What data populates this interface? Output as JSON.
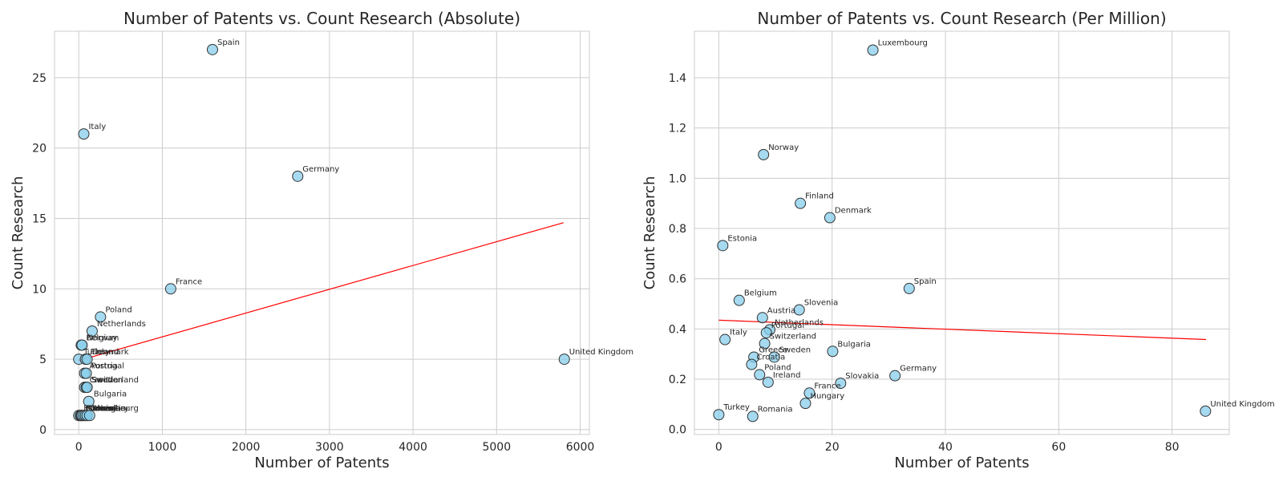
{
  "chart_data": [
    {
      "type": "scatter",
      "title": "Number of Patents vs. Count Research (Absolute)",
      "xlabel": "Number of Patents",
      "ylabel": "Count Research",
      "xlim": [
        -290,
        6110
      ],
      "ylim": [
        -0.35,
        28.3
      ],
      "xticks": [
        0,
        1000,
        2000,
        3000,
        4000,
        5000,
        6000
      ],
      "yticks": [
        0,
        5,
        10,
        15,
        20,
        25
      ],
      "grid": true,
      "marker_color": "#87ceeb",
      "trend_color": "#ff0000",
      "trendline": {
        "x": [
          0,
          5800
        ],
        "y": [
          4.9,
          14.7
        ]
      },
      "points": [
        {
          "label": "Spain",
          "x": 1600,
          "y": 27
        },
        {
          "label": "Italy",
          "x": 60,
          "y": 21
        },
        {
          "label": "Germany",
          "x": 2620,
          "y": 18
        },
        {
          "label": "France",
          "x": 1100,
          "y": 10
        },
        {
          "label": "Poland",
          "x": 260,
          "y": 8
        },
        {
          "label": "Netherlands",
          "x": 160,
          "y": 7
        },
        {
          "label": "Belgium",
          "x": 30,
          "y": 6
        },
        {
          "label": "Norway",
          "x": 40,
          "y": 6
        },
        {
          "label": "Turkey",
          "x": 0,
          "y": 5
        },
        {
          "label": "Finland",
          "x": 80,
          "y": 5
        },
        {
          "label": "Denmark",
          "x": 100,
          "y": 5
        },
        {
          "label": "United Kingdom",
          "x": 5810,
          "y": 5
        },
        {
          "label": "Austria",
          "x": 70,
          "y": 4
        },
        {
          "label": "Portugal",
          "x": 90,
          "y": 4
        },
        {
          "label": "Croatia",
          "x": 70,
          "y": 3
        },
        {
          "label": "Sweden",
          "x": 90,
          "y": 3
        },
        {
          "label": "Switzerland",
          "x": 100,
          "y": 3
        },
        {
          "label": "Bulgaria",
          "x": 120,
          "y": 2
        },
        {
          "label": "Estonia",
          "x": 0,
          "y": 1
        },
        {
          "label": "Romania",
          "x": 20,
          "y": 1
        },
        {
          "label": "Greece",
          "x": 30,
          "y": 1
        },
        {
          "label": "Slovenia",
          "x": 40,
          "y": 1
        },
        {
          "label": "Luxembourg",
          "x": 60,
          "y": 1
        },
        {
          "label": "Ireland",
          "x": 80,
          "y": 1
        },
        {
          "label": "Slovakia",
          "x": 100,
          "y": 1
        },
        {
          "label": "Hungary",
          "x": 130,
          "y": 1
        }
      ]
    },
    {
      "type": "scatter",
      "title": "Number of Patents vs. Count Research (Per Million)",
      "xlabel": "Number of Patents",
      "ylabel": "Count Research",
      "xlim": [
        -4.3,
        90.1
      ],
      "ylim": [
        -0.02,
        1.585
      ],
      "xticks": [
        0,
        20,
        40,
        60,
        80
      ],
      "yticks": [
        0.0,
        0.2,
        0.4,
        0.6,
        0.8,
        1.0,
        1.2,
        1.4
      ],
      "grid": true,
      "marker_color": "#87ceeb",
      "trend_color": "#ff0000",
      "trendline": {
        "x": [
          0,
          86
        ],
        "y": [
          0.435,
          0.358
        ]
      },
      "points": [
        {
          "label": "Luxembourg",
          "x": 27.2,
          "y": 1.51
        },
        {
          "label": "Norway",
          "x": 7.9,
          "y": 1.094
        },
        {
          "label": "Finland",
          "x": 14.4,
          "y": 0.9
        },
        {
          "label": "Denmark",
          "x": 19.6,
          "y": 0.843
        },
        {
          "label": "Estonia",
          "x": 0.7,
          "y": 0.732
        },
        {
          "label": "Spain",
          "x": 33.6,
          "y": 0.561
        },
        {
          "label": "Belgium",
          "x": 3.6,
          "y": 0.514
        },
        {
          "label": "Slovenia",
          "x": 14.2,
          "y": 0.476
        },
        {
          "label": "Austria",
          "x": 7.7,
          "y": 0.445
        },
        {
          "label": "Netherlands",
          "x": 9.0,
          "y": 0.397
        },
        {
          "label": "Portugal",
          "x": 8.4,
          "y": 0.385
        },
        {
          "label": "Italy",
          "x": 1.1,
          "y": 0.358
        },
        {
          "label": "Switzerland",
          "x": 8.1,
          "y": 0.342
        },
        {
          "label": "Bulgaria",
          "x": 20.1,
          "y": 0.311
        },
        {
          "label": "Greece",
          "x": 6.2,
          "y": 0.288
        },
        {
          "label": "Sweden",
          "x": 9.8,
          "y": 0.288
        },
        {
          "label": "Croatia",
          "x": 5.8,
          "y": 0.259
        },
        {
          "label": "Poland",
          "x": 7.2,
          "y": 0.218
        },
        {
          "label": "Germany",
          "x": 31.1,
          "y": 0.214
        },
        {
          "label": "Ireland",
          "x": 8.7,
          "y": 0.188
        },
        {
          "label": "Slovakia",
          "x": 21.5,
          "y": 0.184
        },
        {
          "label": "France",
          "x": 16.0,
          "y": 0.145
        },
        {
          "label": "Hungary",
          "x": 15.3,
          "y": 0.104
        },
        {
          "label": "United Kingdom",
          "x": 85.9,
          "y": 0.073
        },
        {
          "label": "Turkey",
          "x": 0.0,
          "y": 0.059
        },
        {
          "label": "Romania",
          "x": 6.0,
          "y": 0.052
        }
      ]
    }
  ]
}
